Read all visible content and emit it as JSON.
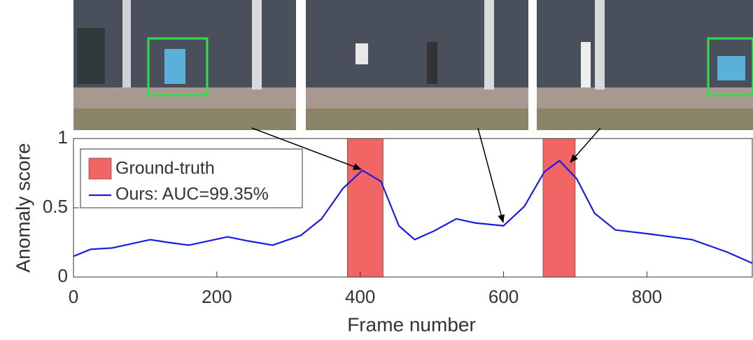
{
  "chart_data": {
    "type": "line",
    "x_label": "Frame number",
    "y_label": "Anomaly score",
    "xlim": [
      0,
      947
    ],
    "ylim": [
      0,
      1
    ],
    "xticks": [
      0,
      200,
      400,
      600,
      800
    ],
    "yticks": [
      0,
      0.5,
      1
    ],
    "regions": {
      "name": "Ground-truth",
      "color": "#f26565",
      "spans": [
        [
          382,
          432
        ],
        [
          655,
          700
        ]
      ]
    },
    "series": [
      {
        "name": "Ours: AUC=99.35%",
        "color": "#1c1ce0",
        "x": [
          0,
          24,
          54,
          107,
          132,
          161,
          215,
          244,
          278,
          317,
          346,
          376,
          403,
          429,
          454,
          476,
          502,
          534,
          561,
          600,
          629,
          657,
          678,
          702,
          727,
          756,
          805,
          863,
          912,
          947
        ],
        "values": [
          0.15,
          0.2,
          0.21,
          0.27,
          0.25,
          0.23,
          0.29,
          0.26,
          0.23,
          0.3,
          0.42,
          0.64,
          0.77,
          0.69,
          0.37,
          0.27,
          0.33,
          0.42,
          0.39,
          0.37,
          0.51,
          0.76,
          0.84,
          0.71,
          0.46,
          0.34,
          0.31,
          0.27,
          0.18,
          0.1
        ]
      }
    ],
    "legend": "upper left"
  }
}
